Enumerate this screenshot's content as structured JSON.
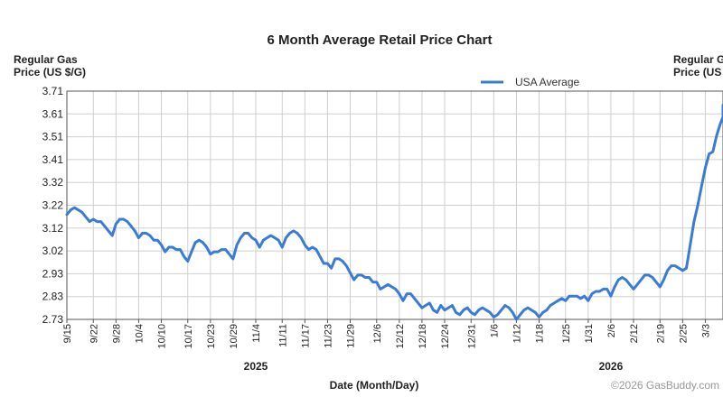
{
  "chart_data": {
    "type": "line",
    "title": "6 Month Average Retail Price Chart",
    "ylabel_left": [
      "Regular Gas",
      "Price (US $/G)"
    ],
    "ylabel_right": [
      "Regular Gas",
      "Price (US $/G)"
    ],
    "xlabel": "Date (Month/Day)",
    "copyright": "©2026 GasBuddy.com",
    "ylim": [
      2.73,
      3.71
    ],
    "y_ticks": [
      "2.73",
      "2.83",
      "2.93",
      "3.02",
      "3.12",
      "3.22",
      "3.32",
      "3.41",
      "3.51",
      "3.61",
      "3.71"
    ],
    "x_ticks": [
      "9/15",
      "9/22",
      "9/28",
      "10/4",
      "10/10",
      "10/17",
      "10/23",
      "10/29",
      "11/4",
      "11/11",
      "11/17",
      "11/23",
      "11/29",
      "12/6",
      "12/12",
      "12/18",
      "12/24",
      "12/31",
      "1/6",
      "1/12",
      "1/18",
      "1/25",
      "1/31",
      "2/6",
      "2/12",
      "2/19",
      "2/25",
      "3/3",
      "3/9"
    ],
    "year_labels": [
      {
        "label": "2025",
        "at": "11/4"
      },
      {
        "label": "2026",
        "at": "2/6"
      }
    ],
    "grid": true,
    "legend": "top-right",
    "color": "#3a7bd5",
    "series": [
      {
        "name": "USA Average",
        "points": [
          [
            "9/15",
            3.18
          ],
          [
            "9/16",
            3.2
          ],
          [
            "9/17",
            3.21
          ],
          [
            "9/18",
            3.2
          ],
          [
            "9/19",
            3.19
          ],
          [
            "9/20",
            3.17
          ],
          [
            "9/21",
            3.15
          ],
          [
            "9/22",
            3.16
          ],
          [
            "9/23",
            3.15
          ],
          [
            "9/24",
            3.15
          ],
          [
            "9/25",
            3.13
          ],
          [
            "9/26",
            3.11
          ],
          [
            "9/27",
            3.09
          ],
          [
            "9/28",
            3.14
          ],
          [
            "9/29",
            3.16
          ],
          [
            "9/30",
            3.16
          ],
          [
            "10/1",
            3.15
          ],
          [
            "10/2",
            3.13
          ],
          [
            "10/3",
            3.11
          ],
          [
            "10/4",
            3.08
          ],
          [
            "10/5",
            3.1
          ],
          [
            "10/6",
            3.1
          ],
          [
            "10/7",
            3.09
          ],
          [
            "10/8",
            3.07
          ],
          [
            "10/9",
            3.07
          ],
          [
            "10/10",
            3.05
          ],
          [
            "10/11",
            3.02
          ],
          [
            "10/12",
            3.04
          ],
          [
            "10/13",
            3.04
          ],
          [
            "10/14",
            3.03
          ],
          [
            "10/15",
            3.03
          ],
          [
            "10/16",
            3.0
          ],
          [
            "10/17",
            2.98
          ],
          [
            "10/18",
            3.02
          ],
          [
            "10/19",
            3.06
          ],
          [
            "10/20",
            3.07
          ],
          [
            "10/21",
            3.06
          ],
          [
            "10/22",
            3.04
          ],
          [
            "10/23",
            3.01
          ],
          [
            "10/24",
            3.02
          ],
          [
            "10/25",
            3.02
          ],
          [
            "10/26",
            3.03
          ],
          [
            "10/27",
            3.03
          ],
          [
            "10/28",
            3.01
          ],
          [
            "10/29",
            2.99
          ],
          [
            "10/30",
            3.05
          ],
          [
            "10/31",
            3.08
          ],
          [
            "11/1",
            3.1
          ],
          [
            "11/2",
            3.1
          ],
          [
            "11/3",
            3.08
          ],
          [
            "11/4",
            3.07
          ],
          [
            "11/5",
            3.04
          ],
          [
            "11/6",
            3.07
          ],
          [
            "11/7",
            3.08
          ],
          [
            "11/8",
            3.09
          ],
          [
            "11/9",
            3.08
          ],
          [
            "11/10",
            3.07
          ],
          [
            "11/11",
            3.04
          ],
          [
            "11/12",
            3.08
          ],
          [
            "11/13",
            3.1
          ],
          [
            "11/14",
            3.11
          ],
          [
            "11/15",
            3.1
          ],
          [
            "11/16",
            3.08
          ],
          [
            "11/17",
            3.05
          ],
          [
            "11/18",
            3.03
          ],
          [
            "11/19",
            3.04
          ],
          [
            "11/20",
            3.03
          ],
          [
            "11/21",
            3.0
          ],
          [
            "11/22",
            2.97
          ],
          [
            "11/23",
            2.97
          ],
          [
            "11/24",
            2.95
          ],
          [
            "11/25",
            2.99
          ],
          [
            "11/26",
            2.99
          ],
          [
            "11/27",
            2.98
          ],
          [
            "11/28",
            2.96
          ],
          [
            "11/29",
            2.93
          ],
          [
            "11/30",
            2.9
          ],
          [
            "12/1",
            2.92
          ],
          [
            "12/2",
            2.92
          ],
          [
            "12/3",
            2.91
          ],
          [
            "12/4",
            2.91
          ],
          [
            "12/5",
            2.89
          ],
          [
            "12/6",
            2.89
          ],
          [
            "12/7",
            2.86
          ],
          [
            "12/8",
            2.87
          ],
          [
            "12/9",
            2.88
          ],
          [
            "12/10",
            2.87
          ],
          [
            "12/11",
            2.86
          ],
          [
            "12/12",
            2.84
          ],
          [
            "12/13",
            2.81
          ],
          [
            "12/14",
            2.84
          ],
          [
            "12/15",
            2.84
          ],
          [
            "12/16",
            2.82
          ],
          [
            "12/17",
            2.8
          ],
          [
            "12/18",
            2.78
          ],
          [
            "12/19",
            2.79
          ],
          [
            "12/20",
            2.8
          ],
          [
            "12/21",
            2.77
          ],
          [
            "12/22",
            2.76
          ],
          [
            "12/23",
            2.79
          ],
          [
            "12/24",
            2.77
          ],
          [
            "12/25",
            2.78
          ],
          [
            "12/26",
            2.79
          ],
          [
            "12/27",
            2.76
          ],
          [
            "12/28",
            2.75
          ],
          [
            "12/29",
            2.77
          ],
          [
            "12/30",
            2.78
          ],
          [
            "12/31",
            2.76
          ],
          [
            "1/1",
            2.75
          ],
          [
            "1/2",
            2.77
          ],
          [
            "1/3",
            2.78
          ],
          [
            "1/4",
            2.77
          ],
          [
            "1/5",
            2.76
          ],
          [
            "1/6",
            2.74
          ],
          [
            "1/7",
            2.75
          ],
          [
            "1/8",
            2.77
          ],
          [
            "1/9",
            2.79
          ],
          [
            "1/10",
            2.78
          ],
          [
            "1/11",
            2.76
          ],
          [
            "1/12",
            2.73
          ],
          [
            "1/13",
            2.75
          ],
          [
            "1/14",
            2.77
          ],
          [
            "1/15",
            2.78
          ],
          [
            "1/16",
            2.77
          ],
          [
            "1/17",
            2.76
          ],
          [
            "1/18",
            2.74
          ],
          [
            "1/19",
            2.76
          ],
          [
            "1/20",
            2.77
          ],
          [
            "1/21",
            2.79
          ],
          [
            "1/22",
            2.8
          ],
          [
            "1/23",
            2.81
          ],
          [
            "1/24",
            2.82
          ],
          [
            "1/25",
            2.81
          ],
          [
            "1/26",
            2.83
          ],
          [
            "1/27",
            2.83
          ],
          [
            "1/28",
            2.83
          ],
          [
            "1/29",
            2.82
          ],
          [
            "1/30",
            2.83
          ],
          [
            "1/31",
            2.81
          ],
          [
            "2/1",
            2.84
          ],
          [
            "2/2",
            2.85
          ],
          [
            "2/3",
            2.85
          ],
          [
            "2/4",
            2.86
          ],
          [
            "2/5",
            2.86
          ],
          [
            "2/6",
            2.83
          ],
          [
            "2/7",
            2.87
          ],
          [
            "2/8",
            2.9
          ],
          [
            "2/9",
            2.91
          ],
          [
            "2/10",
            2.9
          ],
          [
            "2/11",
            2.88
          ],
          [
            "2/12",
            2.86
          ],
          [
            "2/13",
            2.88
          ],
          [
            "2/14",
            2.9
          ],
          [
            "2/15",
            2.92
          ],
          [
            "2/16",
            2.92
          ],
          [
            "2/17",
            2.91
          ],
          [
            "2/18",
            2.89
          ],
          [
            "2/19",
            2.87
          ],
          [
            "2/20",
            2.9
          ],
          [
            "2/21",
            2.94
          ],
          [
            "2/22",
            2.96
          ],
          [
            "2/23",
            2.96
          ],
          [
            "2/24",
            2.95
          ],
          [
            "2/25",
            2.94
          ],
          [
            "2/26",
            2.95
          ],
          [
            "2/27",
            3.05
          ],
          [
            "2/28",
            3.15
          ],
          [
            "3/1",
            3.22
          ],
          [
            "3/2",
            3.3
          ],
          [
            "3/3",
            3.38
          ],
          [
            "3/4",
            3.44
          ],
          [
            "3/5",
            3.45
          ],
          [
            "3/6",
            3.52
          ],
          [
            "3/7",
            3.57
          ],
          [
            "3/8",
            3.6
          ],
          [
            "3/9",
            3.63
          ],
          [
            "3/10",
            3.65
          ]
        ]
      }
    ]
  }
}
